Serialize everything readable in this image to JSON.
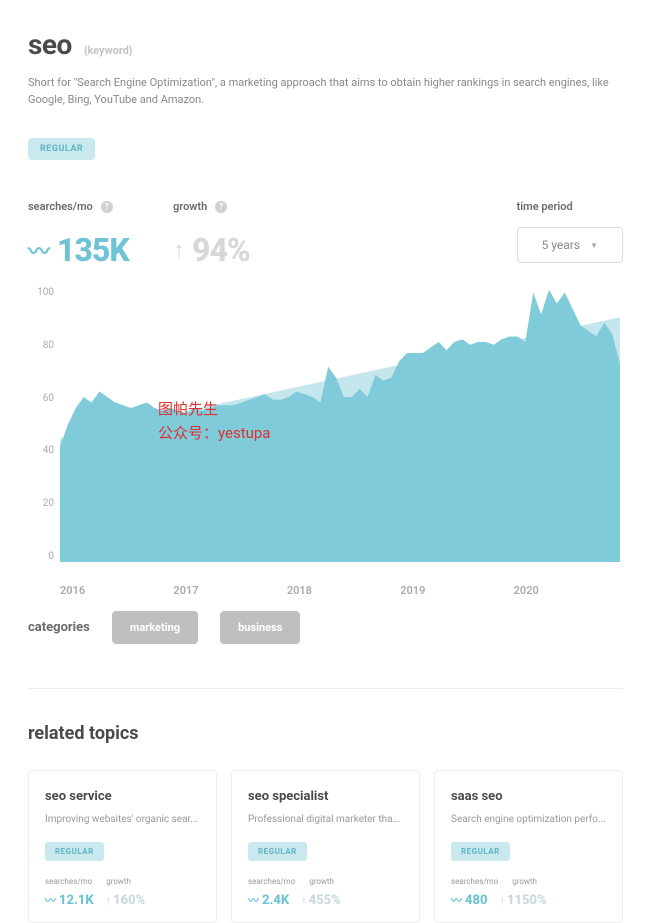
{
  "header": {
    "title": "seo",
    "tag": "{keyword}",
    "description": "Short for \"Search Engine Optimization\", a marketing approach that aims to obtain higher rankings in search engines, like Google, Bing, YouTube and Amazon.",
    "badge": "REGULAR"
  },
  "metrics": {
    "searches": {
      "label": "searches/mo",
      "value": "135K",
      "color": "#6ec3d4"
    },
    "growth": {
      "label": "growth",
      "value": "94%",
      "color": "#d8d8d8"
    }
  },
  "time_period": {
    "label": "time period",
    "selected": "5 years"
  },
  "chart": {
    "type": "area",
    "ylim": [
      0,
      100
    ],
    "ytick_step": 20,
    "yticks": [
      "100",
      "80",
      "60",
      "40",
      "20",
      "0"
    ],
    "xticks": [
      "2016",
      "2017",
      "2018",
      "2019",
      "2020"
    ],
    "area_color": "#7fcbd9",
    "trend_color": "#c5e6ed",
    "background": "#ffffff",
    "axis_color": "#aaaaaa",
    "data": [
      42,
      50,
      56,
      60,
      58,
      62,
      60,
      58,
      57,
      56,
      57,
      58,
      56,
      55,
      56,
      55,
      54,
      56,
      55,
      56,
      57,
      57,
      57,
      58,
      59,
      60,
      61,
      59,
      59,
      60,
      62,
      61,
      60,
      58,
      71,
      67,
      60,
      60,
      63,
      60,
      68,
      66,
      67,
      73,
      76,
      76,
      76,
      78,
      80,
      77,
      80,
      81,
      79,
      80,
      80,
      79,
      81,
      82,
      82,
      80,
      98,
      90,
      99,
      94,
      98,
      92,
      86,
      84,
      82,
      87,
      83,
      72
    ],
    "trend_start": 45,
    "trend_end": 89,
    "watermark": {
      "line1": "图帕先生",
      "line2": "公众号：yestupa",
      "color": "#dd3030"
    }
  },
  "categories": {
    "label": "categories",
    "items": [
      "marketing",
      "business"
    ]
  },
  "related": {
    "title": "related topics",
    "cards": [
      {
        "title": "seo service",
        "desc": "Improving websites' organic sear...",
        "badge": "REGULAR",
        "searches_label": "searches/mo",
        "growth_label": "growth",
        "searches": "12.1K",
        "growth": "160%"
      },
      {
        "title": "seo specialist",
        "desc": "Professional digital marketer tha...",
        "badge": "REGULAR",
        "searches_label": "searches/mo",
        "growth_label": "growth",
        "searches": "2.4K",
        "growth": "455%"
      },
      {
        "title": "saas seo",
        "desc": "Search engine optimization perfo...",
        "badge": "REGULAR",
        "searches_label": "searches/mo",
        "growth_label": "growth",
        "searches": "480",
        "growth": "1150%"
      }
    ]
  }
}
